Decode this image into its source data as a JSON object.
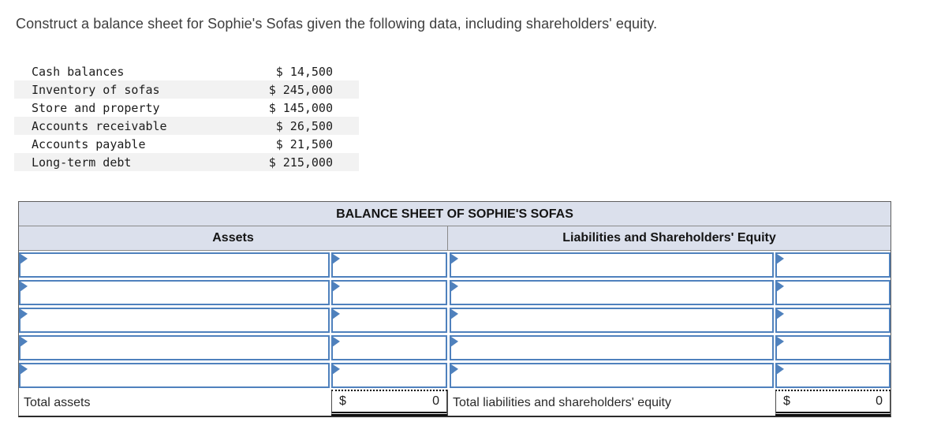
{
  "instruction": "Construct a balance sheet for Sophie's Sofas given the following data, including shareholders' equity.",
  "colors": {
    "cell_border": "#4f81bd",
    "header_fill": "#dbe0ec"
  },
  "given_data": {
    "rows": [
      {
        "label": "Cash balances",
        "amount": "$ 14,500"
      },
      {
        "label": "Inventory of sofas",
        "amount": "$ 245,000"
      },
      {
        "label": "Store and property",
        "amount": "$ 145,000"
      },
      {
        "label": "Accounts receivable",
        "amount": "$ 26,500"
      },
      {
        "label": "Accounts payable",
        "amount": "$ 21,500"
      },
      {
        "label": "Long-term debt",
        "amount": "$ 215,000"
      }
    ]
  },
  "balance_sheet": {
    "title": "BALANCE SHEET OF SOPHIE'S SOFAS",
    "columns": {
      "assets": "Assets",
      "liabilities": "Liabilities and Shareholders' Equity"
    },
    "rows": [
      {
        "assets_label": "",
        "assets_amount": "",
        "liabilities_label": "",
        "liabilities_amount": ""
      },
      {
        "assets_label": "",
        "assets_amount": "",
        "liabilities_label": "",
        "liabilities_amount": ""
      },
      {
        "assets_label": "",
        "assets_amount": "",
        "liabilities_label": "",
        "liabilities_amount": ""
      },
      {
        "assets_label": "",
        "assets_amount": "",
        "liabilities_label": "",
        "liabilities_amount": ""
      },
      {
        "assets_label": "",
        "assets_amount": "",
        "liabilities_label": "",
        "liabilities_amount": ""
      }
    ],
    "totals": {
      "assets": {
        "label": "Total assets",
        "currency": "$",
        "value": "0"
      },
      "liabilities": {
        "label": "Total liabilities and shareholders' equity",
        "currency": "$",
        "value": "0"
      }
    }
  }
}
